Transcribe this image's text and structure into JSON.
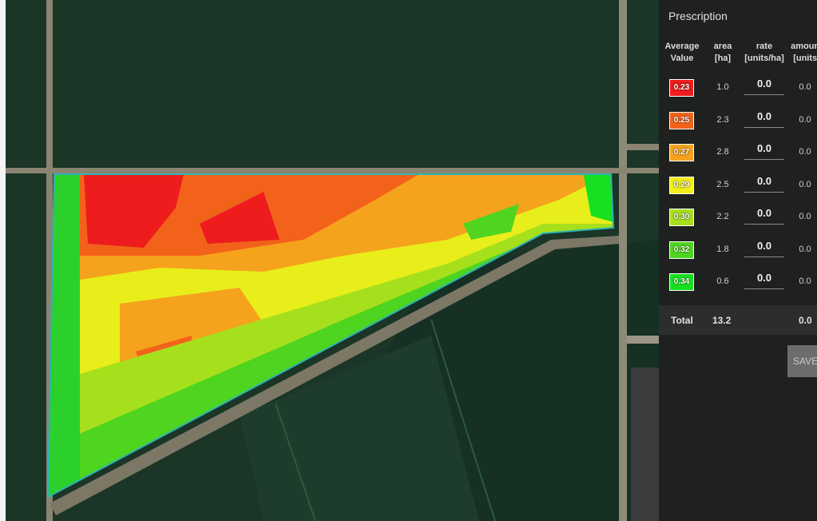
{
  "panel": {
    "title": "Prescription",
    "headers": [
      [
        "Average",
        "Value"
      ],
      [
        "area",
        "[ha]"
      ],
      [
        "rate",
        "[units/ha]"
      ],
      [
        "amount",
        "[units]"
      ]
    ],
    "rows": [
      {
        "value": "0.23",
        "color": "#ee1c1c",
        "area": "1.0",
        "rate": "0.0",
        "amount": "0.0"
      },
      {
        "value": "0.25",
        "color": "#f2621b",
        "area": "2.3",
        "rate": "0.0",
        "amount": "0.0"
      },
      {
        "value": "0.27",
        "color": "#f5a31c",
        "area": "2.8",
        "rate": "0.0",
        "amount": "0.0"
      },
      {
        "value": "0.29",
        "color": "#f1ef17",
        "area": "2.5",
        "rate": "0.0",
        "amount": "0.0"
      },
      {
        "value": "0.30",
        "color": "#a6e01c",
        "area": "2.2",
        "rate": "0.0",
        "amount": "0.0"
      },
      {
        "value": "0.32",
        "color": "#4fd51f",
        "area": "1.8",
        "rate": "0.0",
        "amount": "0.0"
      },
      {
        "value": "0.34",
        "color": "#16e020",
        "area": "0.6",
        "rate": "0.0",
        "amount": "0.0"
      }
    ],
    "total": {
      "label": "Total",
      "area": "13.2",
      "amount": "0.0"
    },
    "button": "SAVE"
  }
}
